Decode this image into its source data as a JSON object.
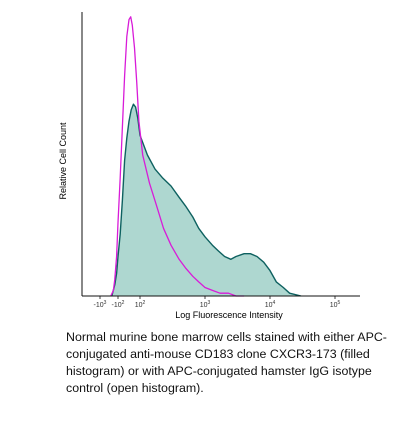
{
  "chart_data": {
    "type": "line",
    "title": "",
    "xlabel": "Log Fluorescence Intensity",
    "ylabel": "Relative Cell Count",
    "x_scale": "biexponential",
    "ylim": [
      0,
      100
    ],
    "grid": false,
    "x_ticks": [
      {
        "base": "-10",
        "exp": "3",
        "value": -1000
      },
      {
        "base": "-10",
        "exp": "2",
        "value": -100
      },
      {
        "base": "10",
        "exp": "2",
        "value": 100
      },
      {
        "base": "10",
        "exp": "3",
        "value": 1000
      },
      {
        "base": "10",
        "exp": "4",
        "value": 10000
      },
      {
        "base": "10",
        "exp": "5",
        "value": 100000
      }
    ],
    "series": [
      {
        "role": "filled",
        "fill": "#aed7d0",
        "stroke": "#0e6160",
        "x": [
          -220,
          -150,
          -120,
          -100,
          -80,
          -60,
          -40,
          -20,
          0,
          20,
          40,
          60,
          80,
          100,
          130,
          170,
          220,
          300,
          400,
          500,
          650,
          800,
          1000,
          1300,
          1600,
          2000,
          2500,
          3000,
          4000,
          5000,
          6300,
          8000,
          10000,
          12500,
          16000,
          20000,
          30000
        ],
        "y": [
          0,
          4,
          8,
          14,
          22,
          34,
          48,
          56,
          62,
          66,
          68,
          67,
          63,
          57,
          50,
          45,
          42,
          39,
          35,
          32,
          28,
          24,
          21,
          18,
          16,
          14,
          13,
          14,
          15,
          15,
          14,
          12,
          9,
          5,
          3,
          1,
          0
        ]
      },
      {
        "role": "open",
        "stroke": "#d81bd8",
        "x": [
          -250,
          -180,
          -150,
          -120,
          -100,
          -80,
          -60,
          -40,
          -20,
          0,
          15,
          30,
          50,
          70,
          90,
          110,
          140,
          180,
          230,
          300,
          400,
          500,
          650,
          800,
          1000,
          1300,
          1700,
          2300,
          3000,
          4000
        ],
        "y": [
          0,
          2,
          6,
          14,
          26,
          42,
          60,
          78,
          92,
          98,
          99,
          96,
          88,
          76,
          62,
          50,
          40,
          32,
          24,
          18,
          13,
          10,
          7,
          5,
          3,
          2,
          1,
          1,
          0,
          0
        ]
      }
    ]
  },
  "caption": "Normal murine bone marrow cells stained with either APC-conjugated anti-mouse CD183 clone CXCR3-173 (filled histogram) or with APC-conjugated hamster IgG isotype control (open histogram)."
}
